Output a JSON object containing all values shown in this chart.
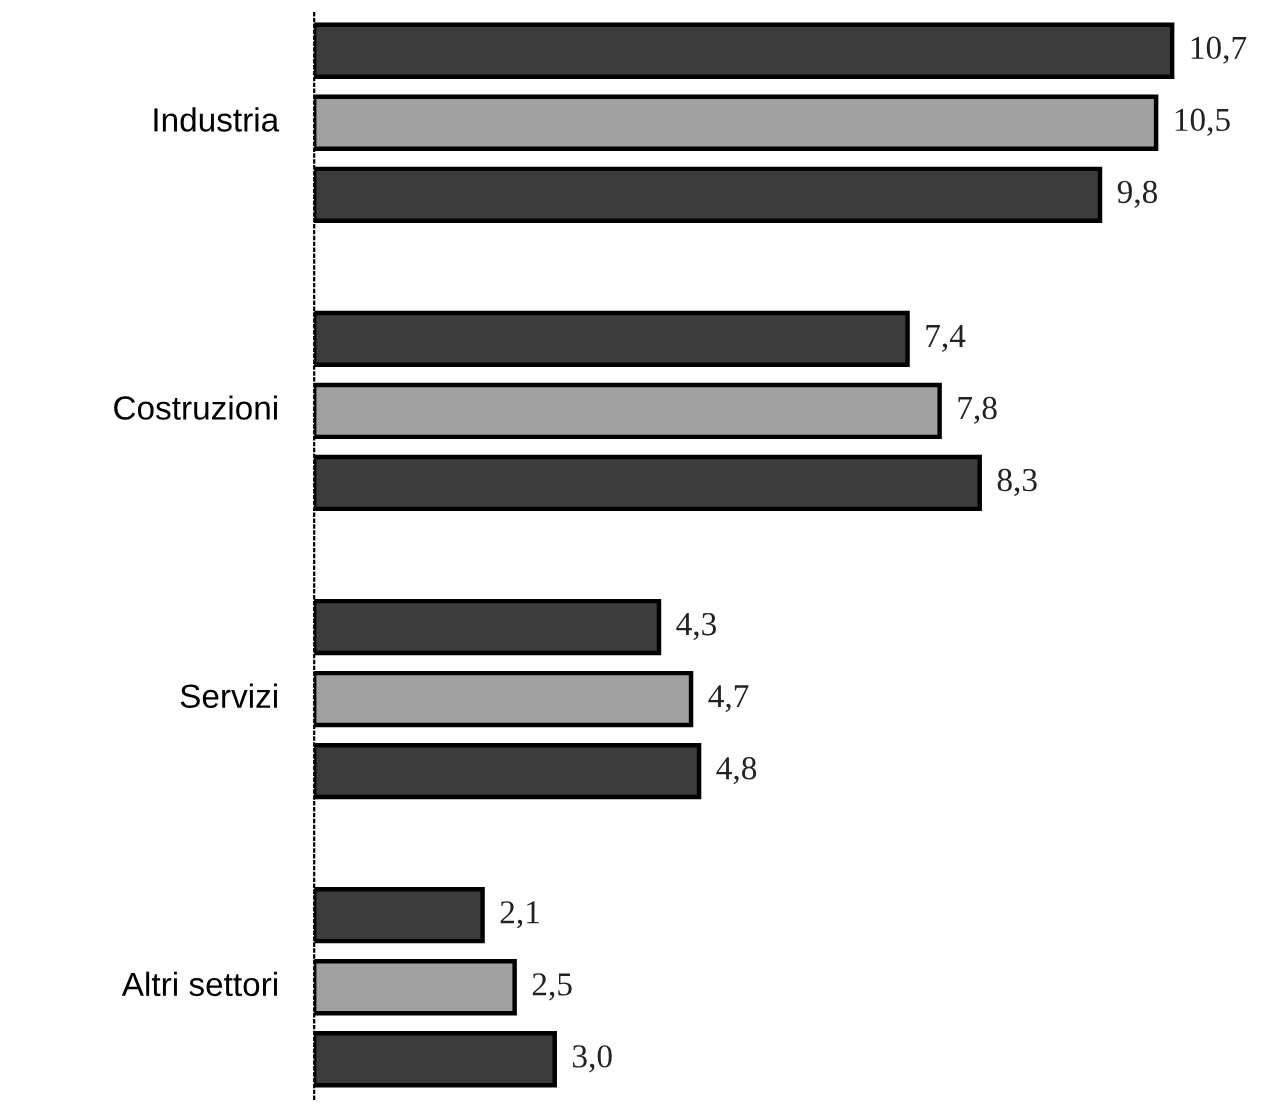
{
  "chart_data": {
    "type": "bar",
    "orientation": "horizontal",
    "categories": [
      "Industria",
      "Costruzioni",
      "Servizi",
      "Altri settori"
    ],
    "series": [
      {
        "color": "#3c3c3c",
        "values": [
          10.7,
          7.4,
          4.3,
          2.1
        ],
        "value_labels": [
          "10,7",
          "7,4",
          "4,3",
          "2,1"
        ]
      },
      {
        "color": "#a0a0a0",
        "values": [
          10.5,
          7.8,
          4.7,
          2.5
        ],
        "value_labels": [
          "10,5",
          "7,8",
          "4,7",
          "2,5"
        ]
      },
      {
        "color": "#3c3c3c",
        "values": [
          9.8,
          8.3,
          4.8,
          3.0
        ],
        "value_labels": [
          "9,8",
          "8,3",
          "4,8",
          "3,0"
        ]
      }
    ]
  }
}
